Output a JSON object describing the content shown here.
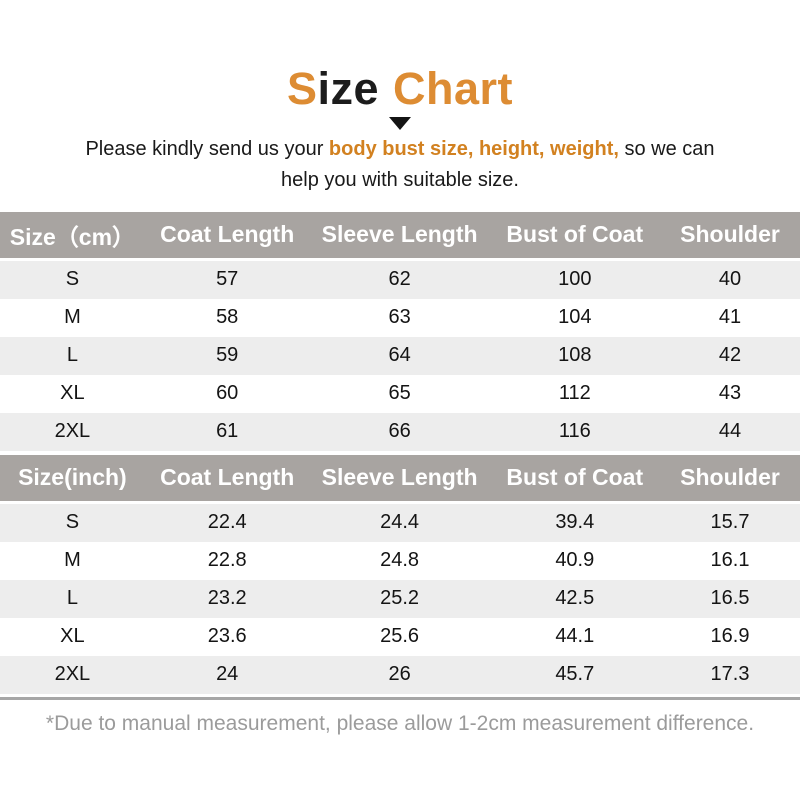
{
  "colors": {
    "title_orange": "#dd8c33",
    "subtitle_orange": "#d28120",
    "header_gray": "#a8a4a1",
    "row_stripe_gray": "#ededed",
    "footnote_gray": "#9b9b9b",
    "text_black": "#141414"
  },
  "title": {
    "orange_s": "S",
    "black_ize": "ize",
    "orange_chart": "Chart"
  },
  "subtitle": {
    "text_before": "Please kindly send us your ",
    "highlight": "body bust size, height, weight,",
    "after_line1": " so we can",
    "line2": "help you with suitable size."
  },
  "tables": [
    {
      "unit": "cm",
      "headers": [
        "Size（cm）",
        "Coat Length",
        "Sleeve Length",
        "Bust of Coat",
        "Shoulder"
      ],
      "rows": [
        [
          "S",
          "57",
          "62",
          "100",
          "40"
        ],
        [
          "M",
          "58",
          "63",
          "104",
          "41"
        ],
        [
          "L",
          "59",
          "64",
          "108",
          "42"
        ],
        [
          "XL",
          "60",
          "65",
          "112",
          "43"
        ],
        [
          "2XL",
          "61",
          "66",
          "116",
          "44"
        ]
      ]
    },
    {
      "unit": "inch",
      "headers": [
        "Size(inch)",
        "Coat Length",
        "Sleeve Length",
        "Bust of Coat",
        "Shoulder"
      ],
      "rows": [
        [
          "S",
          "22.4",
          "24.4",
          "39.4",
          "15.7"
        ],
        [
          "M",
          "22.8",
          "24.8",
          "40.9",
          "16.1"
        ],
        [
          "L",
          "23.2",
          "25.2",
          "42.5",
          "16.5"
        ],
        [
          "XL",
          "23.6",
          "25.6",
          "44.1",
          "16.9"
        ],
        [
          "2XL",
          "24",
          "26",
          "45.7",
          "17.3"
        ]
      ]
    }
  ],
  "footnote": "*Due to manual measurement, please allow 1-2cm measurement difference."
}
